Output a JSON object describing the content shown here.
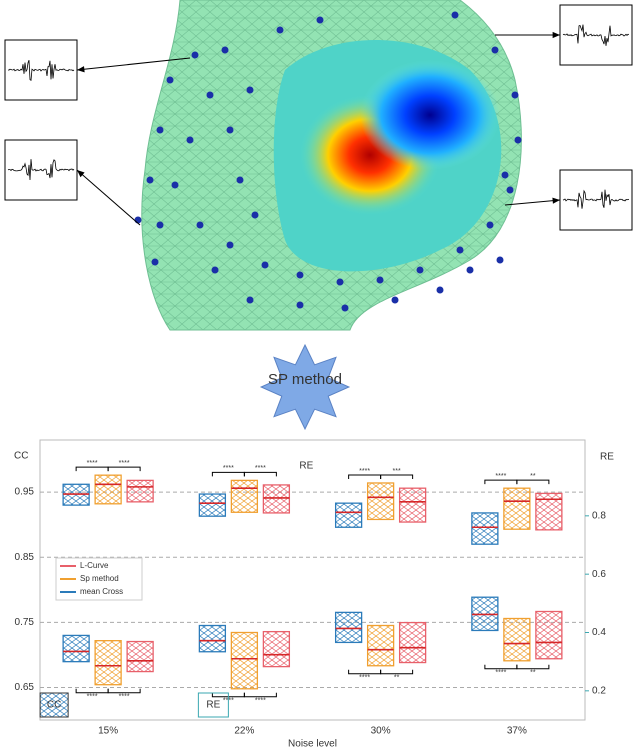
{
  "figure": {
    "callout": "SP method"
  },
  "chart_data": {
    "type": "box",
    "categories": [
      "15%",
      "22%",
      "30%",
      "37%"
    ],
    "x_label": "Noise level",
    "y_label": "CC",
    "y2_label": "RE",
    "ylim": [
      0.6,
      1.03
    ],
    "yticks": [
      0.65,
      0.75,
      0.85,
      0.95
    ],
    "y2lim": [
      0.1,
      1.06
    ],
    "y2ticks": [
      0.2,
      0.4,
      0.6,
      0.8
    ],
    "grid": true,
    "series": [
      {
        "name": "mean Cross",
        "color": "#2b7bba",
        "values": [
          [
            0.93,
            0.947,
            0.962
          ],
          [
            0.913,
            0.933,
            0.947
          ],
          [
            0.896,
            0.919,
            0.933
          ],
          [
            0.87,
            0.896,
            0.918
          ]
        ],
        "y2_values": [
          [
            0.3,
            0.335,
            0.39
          ],
          [
            0.334,
            0.372,
            0.424
          ],
          [
            0.366,
            0.414,
            0.469
          ],
          [
            0.407,
            0.462,
            0.521
          ]
        ]
      },
      {
        "name": "Sp method",
        "color": "#f0a030",
        "values": [
          [
            0.932,
            0.962,
            0.976
          ],
          [
            0.919,
            0.956,
            0.968
          ],
          [
            0.908,
            0.942,
            0.964
          ],
          [
            0.893,
            0.936,
            0.956
          ]
        ],
        "y2_values": [
          [
            0.221,
            0.286,
            0.372
          ],
          [
            0.207,
            0.31,
            0.4
          ],
          [
            0.286,
            0.341,
            0.424
          ],
          [
            0.303,
            0.362,
            0.448
          ]
        ]
      },
      {
        "name": "L-Curve",
        "color": "#e8606a",
        "values": [
          [
            0.935,
            0.958,
            0.968
          ],
          [
            0.918,
            0.941,
            0.961
          ],
          [
            0.904,
            0.935,
            0.956
          ],
          [
            0.892,
            0.939,
            0.948
          ]
        ],
        "y2_values": [
          [
            0.266,
            0.303,
            0.369
          ],
          [
            0.283,
            0.324,
            0.403
          ],
          [
            0.297,
            0.348,
            0.434
          ],
          [
            0.31,
            0.366,
            0.472
          ]
        ]
      }
    ],
    "annotations_upper": [
      [
        "****",
        "****"
      ],
      [
        "****",
        "****"
      ],
      [
        "****",
        "***"
      ],
      [
        "****",
        "**"
      ]
    ],
    "annotations_lower": [
      [
        "****",
        "****"
      ],
      [
        "****",
        "****"
      ],
      [
        "****",
        "**"
      ],
      [
        "****",
        "**"
      ]
    ],
    "inline_labels": [
      "RE",
      "CC",
      "RE"
    ]
  }
}
